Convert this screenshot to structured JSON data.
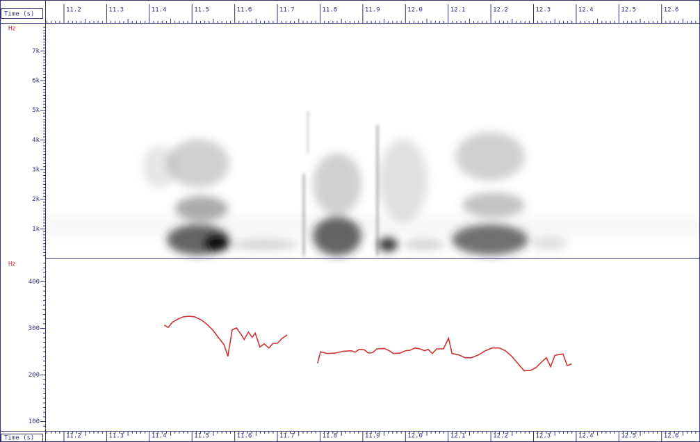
{
  "chart_data": [
    {
      "type": "spectrogram",
      "x_label": "Time (s)",
      "y_label": "Hz",
      "xlim": [
        11.156,
        12.69
      ],
      "xticks": [
        11.2,
        11.3,
        11.4,
        11.5,
        11.6,
        11.7,
        11.8,
        11.9,
        {
          "value": 12,
          "label": "12.0"
        },
        12.1,
        12.2,
        12.3,
        12.4,
        12.5,
        12.6
      ],
      "ylim": [
        0,
        7920
      ],
      "yticks": [
        {
          "value": 1000,
          "label": "1k"
        },
        {
          "value": 2000,
          "label": "2k"
        },
        {
          "value": 3000,
          "label": "3k"
        },
        {
          "value": 4000,
          "label": "4k"
        },
        {
          "value": 5000,
          "label": "5k"
        },
        {
          "value": 6000,
          "label": "6k"
        },
        {
          "value": 7000,
          "label": "7k"
        }
      ]
    },
    {
      "type": "line",
      "x_label": "Time (s)",
      "y_label": "Hz",
      "color": "#cc3333",
      "xlim": [
        11.156,
        12.69
      ],
      "xticks": [
        11.2,
        11.3,
        11.4,
        11.5,
        11.6,
        11.7,
        11.8,
        11.9,
        {
          "value": 12,
          "label": "12.0"
        },
        12.1,
        12.2,
        12.3,
        12.4,
        12.5,
        12.6
      ],
      "ylim": [
        80,
        450
      ],
      "yticks": [
        100,
        200,
        300,
        400
      ],
      "x": [
        11.435,
        11.444,
        11.454,
        11.467,
        11.48,
        11.493,
        11.506,
        11.522,
        11.536,
        11.549,
        11.562,
        11.575,
        11.584,
        11.594,
        11.604,
        11.615,
        11.622,
        11.632,
        11.641,
        11.648,
        11.659,
        11.669,
        11.68,
        11.69,
        11.7,
        11.71,
        11.723,
        11.75,
        11.794,
        11.801,
        11.816,
        11.835,
        11.855,
        11.873,
        11.882,
        11.892,
        11.904,
        11.913,
        11.923,
        11.933,
        11.951,
        11.962,
        11.972,
        11.987,
        12.0,
        12.011,
        12.022,
        12.034,
        12.045,
        12.053,
        12.063,
        12.073,
        12.089,
        12.101,
        12.109,
        12.125,
        12.14,
        12.154,
        12.171,
        12.187,
        12.203,
        12.22,
        12.234,
        12.249,
        12.262,
        12.278,
        12.293,
        12.306,
        12.319,
        12.33,
        12.34,
        12.35,
        12.361,
        12.369,
        12.379,
        12.389
      ],
      "values": [
        307,
        302,
        313,
        320,
        325,
        326,
        325,
        318,
        308,
        296,
        280,
        265,
        240,
        297,
        301,
        287,
        276,
        292,
        281,
        290,
        260,
        267,
        258,
        268,
        268,
        278,
        286,
        null,
        225,
        250,
        246,
        247,
        251,
        252,
        249,
        255,
        254,
        247,
        248,
        256,
        257,
        252,
        246,
        247,
        252,
        253,
        258,
        256,
        252,
        255,
        246,
        256,
        256,
        279,
        246,
        243,
        237,
        237,
        243,
        252,
        258,
        258,
        252,
        240,
        226,
        209,
        210,
        216,
        228,
        237,
        218,
        242,
        244,
        245,
        220,
        224
      ]
    }
  ]
}
